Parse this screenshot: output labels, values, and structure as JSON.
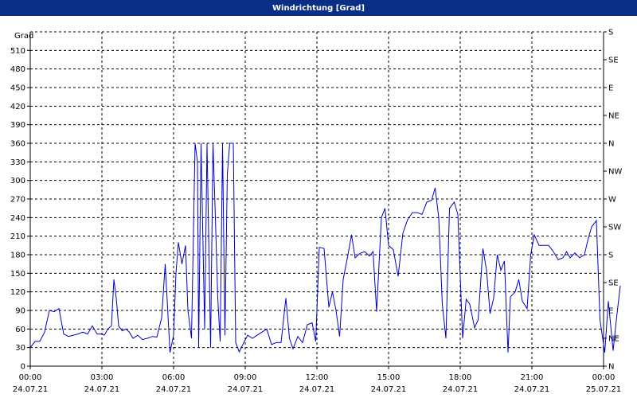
{
  "window": {
    "title": "Windrichtung [Grad]"
  },
  "chart_data": {
    "type": "line",
    "title": "Windrichtung [Grad]",
    "ylabel": "Grad",
    "ylim": [
      0,
      540
    ],
    "y_ticks": [
      0,
      30,
      60,
      90,
      120,
      150,
      180,
      210,
      240,
      270,
      300,
      330,
      360,
      390,
      420,
      450,
      480,
      510
    ],
    "y2_ticks": [
      {
        "value": 0,
        "label": "N"
      },
      {
        "value": 45,
        "label": "NE"
      },
      {
        "value": 90,
        "label": "E"
      },
      {
        "value": 135,
        "label": "SE"
      },
      {
        "value": 180,
        "label": "S"
      },
      {
        "value": 225,
        "label": "SW"
      },
      {
        "value": 270,
        "label": "W"
      },
      {
        "value": 315,
        "label": "NW"
      },
      {
        "value": 360,
        "label": "N"
      },
      {
        "value": 405,
        "label": "NE"
      },
      {
        "value": 450,
        "label": "E"
      },
      {
        "value": 495,
        "label": "SE"
      },
      {
        "value": 540,
        "label": "S"
      }
    ],
    "xlim_hours": [
      0,
      24
    ],
    "x_ticks": [
      {
        "hour": 0,
        "time": "00:00",
        "date": "24.07.21"
      },
      {
        "hour": 3,
        "time": "03:00",
        "date": "24.07.21"
      },
      {
        "hour": 6,
        "time": "06:00",
        "date": "24.07.21"
      },
      {
        "hour": 9,
        "time": "09:00",
        "date": "24.07.21"
      },
      {
        "hour": 12,
        "time": "12:00",
        "date": "24.07.21"
      },
      {
        "hour": 15,
        "time": "15:00",
        "date": "24.07.21"
      },
      {
        "hour": 18,
        "time": "18:00",
        "date": "24.07.21"
      },
      {
        "hour": 21,
        "time": "21:00",
        "date": "24.07.21"
      },
      {
        "hour": 24,
        "time": "00:00",
        "date": "25.07.21"
      }
    ],
    "grid": true,
    "series": [
      {
        "color": "#0000cc",
        "points": [
          [
            0.0,
            30
          ],
          [
            0.2,
            40
          ],
          [
            0.4,
            40
          ],
          [
            0.6,
            55
          ],
          [
            0.8,
            90
          ],
          [
            1.0,
            88
          ],
          [
            1.2,
            93
          ],
          [
            1.4,
            52
          ],
          [
            1.6,
            48
          ],
          [
            1.8,
            50
          ],
          [
            2.0,
            52
          ],
          [
            2.2,
            55
          ],
          [
            2.4,
            52
          ],
          [
            2.6,
            65
          ],
          [
            2.8,
            52
          ],
          [
            3.0,
            52
          ],
          [
            3.1,
            50
          ],
          [
            3.25,
            60
          ],
          [
            3.4,
            65
          ],
          [
            3.5,
            140
          ],
          [
            3.6,
            110
          ],
          [
            3.7,
            65
          ],
          [
            3.85,
            57
          ],
          [
            4.0,
            60
          ],
          [
            4.15,
            55
          ],
          [
            4.3,
            45
          ],
          [
            4.5,
            50
          ],
          [
            4.7,
            43
          ],
          [
            4.9,
            45
          ],
          [
            5.1,
            48
          ],
          [
            5.3,
            47
          ],
          [
            5.5,
            78
          ],
          [
            5.65,
            165
          ],
          [
            5.85,
            22
          ],
          [
            6.0,
            50
          ],
          [
            6.1,
            150
          ],
          [
            6.2,
            200
          ],
          [
            6.35,
            165
          ],
          [
            6.5,
            195
          ],
          [
            6.6,
            90
          ],
          [
            6.75,
            45
          ],
          [
            6.9,
            360
          ],
          [
            7.0,
            330
          ],
          [
            7.05,
            30
          ],
          [
            7.15,
            360
          ],
          [
            7.3,
            60
          ],
          [
            7.4,
            360
          ],
          [
            7.55,
            30
          ],
          [
            7.65,
            360
          ],
          [
            7.75,
            240
          ],
          [
            7.85,
            110
          ],
          [
            7.95,
            40
          ],
          [
            8.05,
            360
          ],
          [
            8.15,
            50
          ],
          [
            8.25,
            310
          ],
          [
            8.35,
            360
          ],
          [
            8.5,
            360
          ],
          [
            8.6,
            38
          ],
          [
            8.75,
            23
          ],
          [
            8.9,
            35
          ],
          [
            9.1,
            50
          ],
          [
            9.3,
            45
          ],
          [
            9.5,
            50
          ],
          [
            9.7,
            55
          ],
          [
            9.9,
            60
          ],
          [
            10.1,
            35
          ],
          [
            10.3,
            38
          ],
          [
            10.5,
            38
          ],
          [
            10.7,
            110
          ],
          [
            10.85,
            45
          ],
          [
            11.0,
            28
          ],
          [
            11.2,
            48
          ],
          [
            11.4,
            38
          ],
          [
            11.6,
            67
          ],
          [
            11.8,
            70
          ],
          [
            11.95,
            40
          ],
          [
            12.1,
            192
          ],
          [
            12.3,
            190
          ],
          [
            12.5,
            95
          ],
          [
            12.65,
            120
          ],
          [
            12.8,
            90
          ],
          [
            12.95,
            48
          ],
          [
            13.1,
            140
          ],
          [
            13.3,
            180
          ],
          [
            13.45,
            212
          ],
          [
            13.6,
            175
          ],
          [
            13.8,
            182
          ],
          [
            14.0,
            185
          ],
          [
            14.2,
            178
          ],
          [
            14.35,
            185
          ],
          [
            14.5,
            88
          ],
          [
            14.7,
            240
          ],
          [
            14.85,
            255
          ],
          [
            15.0,
            195
          ],
          [
            15.2,
            188
          ],
          [
            15.4,
            145
          ],
          [
            15.6,
            215
          ],
          [
            15.8,
            237
          ],
          [
            16.0,
            248
          ],
          [
            16.2,
            248
          ],
          [
            16.4,
            245
          ],
          [
            16.6,
            265
          ],
          [
            16.8,
            268
          ],
          [
            16.95,
            288
          ],
          [
            17.1,
            240
          ],
          [
            17.25,
            100
          ],
          [
            17.4,
            45
          ],
          [
            17.55,
            255
          ],
          [
            17.75,
            265
          ],
          [
            17.9,
            245
          ],
          [
            18.1,
            45
          ],
          [
            18.25,
            108
          ],
          [
            18.4,
            100
          ],
          [
            18.6,
            62
          ],
          [
            18.75,
            75
          ],
          [
            18.95,
            190
          ],
          [
            19.1,
            155
          ],
          [
            19.25,
            85
          ],
          [
            19.4,
            110
          ],
          [
            19.55,
            180
          ],
          [
            19.7,
            155
          ],
          [
            19.85,
            170
          ],
          [
            20.0,
            22
          ],
          [
            20.1,
            112
          ],
          [
            20.3,
            120
          ],
          [
            20.45,
            140
          ],
          [
            20.6,
            105
          ],
          [
            20.8,
            93
          ],
          [
            20.95,
            180
          ],
          [
            21.1,
            212
          ],
          [
            21.3,
            195
          ],
          [
            21.5,
            195
          ],
          [
            21.7,
            195
          ],
          [
            21.9,
            185
          ],
          [
            22.1,
            172
          ],
          [
            22.3,
            175
          ],
          [
            22.45,
            185
          ],
          [
            22.6,
            175
          ],
          [
            22.8,
            183
          ],
          [
            23.0,
            175
          ],
          [
            23.2,
            180
          ],
          [
            23.35,
            205
          ],
          [
            23.5,
            225
          ],
          [
            23.7,
            235
          ],
          [
            23.85,
            75
          ],
          [
            24.05,
            22
          ],
          [
            24.2,
            105
          ],
          [
            24.4,
            25
          ],
          [
            24.55,
            80
          ],
          [
            24.7,
            130
          ]
        ]
      }
    ]
  }
}
